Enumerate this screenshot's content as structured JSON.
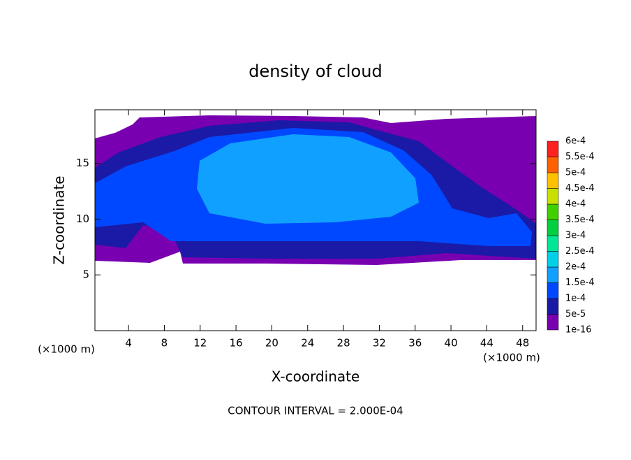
{
  "chart_data": {
    "type": "contour",
    "title": "density of cloud",
    "xlabel": "X-coordinate",
    "ylabel": "Z-coordinate",
    "x_unit": "(×1000 m)",
    "y_unit": "(×1000 m)",
    "note": "CONTOUR INTERVAL = 2.000E-04",
    "xlim": [
      0.25,
      49.5
    ],
    "ylim": [
      0,
      19.8
    ],
    "xticks": [
      4,
      8,
      12,
      16,
      20,
      24,
      28,
      32,
      36,
      40,
      44,
      48
    ],
    "yticks": [
      5,
      10,
      15
    ],
    "levels": [
      {
        "value": 1e-16,
        "label": "1e-16"
      },
      {
        "value": 5e-05,
        "label": "5e-5"
      },
      {
        "value": 0.0001,
        "label": "1e-4"
      },
      {
        "value": 0.00015,
        "label": "1.5e-4"
      },
      {
        "value": 0.0002,
        "label": "2e-4"
      },
      {
        "value": 0.00025,
        "label": "2.5e-4"
      },
      {
        "value": 0.0003,
        "label": "3e-4"
      },
      {
        "value": 0.00035,
        "label": "3.5e-4"
      },
      {
        "value": 0.0004,
        "label": "4e-4"
      },
      {
        "value": 0.00045,
        "label": "4.5e-4"
      },
      {
        "value": 0.0005,
        "label": "5e-4"
      },
      {
        "value": 0.00055,
        "label": "5.5e-4"
      },
      {
        "value": 0.0006,
        "label": "6e-4"
      }
    ],
    "colors": [
      "#7800b0",
      "#1a1aa6",
      "#0048ff",
      "#10a0ff",
      "#00d0e8",
      "#00e696",
      "#00d040",
      "#40d000",
      "#c8e000",
      "#ffc000",
      "#ff6000",
      "#ff2020"
    ]
  }
}
